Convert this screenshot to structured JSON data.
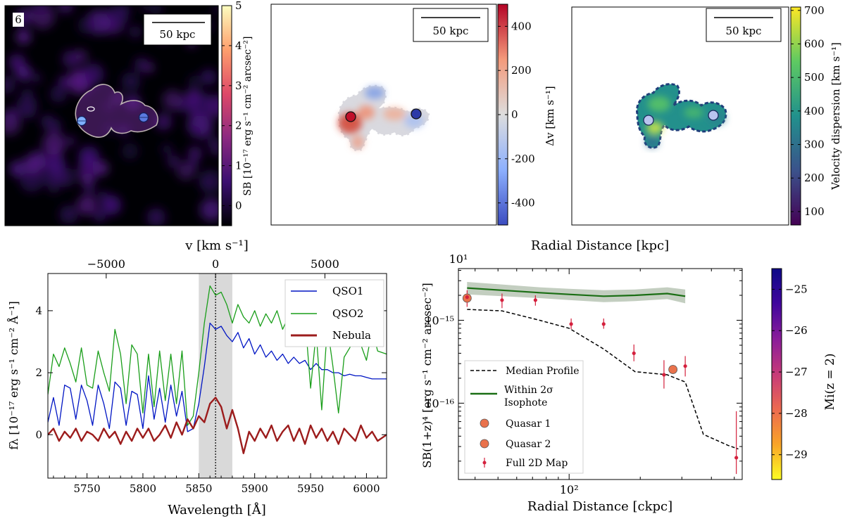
{
  "chart_data": [
    {
      "type": "heatmap",
      "panel_number": "6",
      "scalebar_label": "50 kpc",
      "colorbar_label": "SB [10⁻¹⁷ erg s⁻¹ cm⁻² arcsec⁻²]",
      "colorbar_ticks": [
        0,
        1,
        2,
        3,
        4,
        5
      ],
      "clim": [
        -0.5,
        5
      ],
      "colormap": [
        "#000004",
        "#3b0f70",
        "#8c2981",
        "#de4968",
        "#fe9f6d",
        "#fcfdbf"
      ],
      "contour_color": "#bdb2b2",
      "marker_colors": [
        "#7fb0ff",
        "#5b7be0"
      ]
    },
    {
      "type": "heatmap",
      "scalebar_label": "50 kpc",
      "colorbar_label": "Δv [km s⁻¹]",
      "colorbar_ticks": [
        400,
        200,
        0,
        -200,
        -400
      ],
      "clim": [
        -500,
        500
      ],
      "colormap": [
        "#3b4cc0",
        "#8db0fe",
        "#dddddd",
        "#f49a7b",
        "#b40426"
      ],
      "marker_colors": [
        "#c0102a",
        "#2c3aa8"
      ]
    },
    {
      "type": "heatmap",
      "scalebar_label": "50 kpc",
      "colorbar_label": "Velocity dispersion [km s⁻¹]",
      "colorbar_ticks": [
        100,
        200,
        300,
        400,
        500,
        600,
        700
      ],
      "clim": [
        60,
        710
      ],
      "colormap": [
        "#440154",
        "#3b528b",
        "#21918c",
        "#5ec962",
        "#fde725"
      ],
      "marker_colors": [
        "#b9c4ef",
        "#b9c4ef"
      ]
    },
    {
      "type": "line",
      "xlabel": "Wavelength [Å]",
      "ylabel": "fλ [10⁻¹⁷ erg s⁻¹ cm⁻² Å⁻¹]",
      "top_xlabel": "v [km s⁻¹]",
      "xlim": [
        5715,
        6018
      ],
      "ylim": [
        -1.4,
        5.2
      ],
      "xticks": [
        5750,
        5800,
        5850,
        5900,
        5950,
        6000
      ],
      "yticks": [
        0,
        2,
        4
      ],
      "top_ticks": [
        -5000,
        0,
        5000
      ],
      "top_tick_labels": [
        "−5000",
        "0",
        "5000"
      ],
      "line_center": 5865,
      "shaded_band": [
        5850,
        5880
      ],
      "series": [
        {
          "name": "QSO1",
          "color": "#0015c4",
          "x": [
            5715,
            5720,
            5725,
            5730,
            5735,
            5740,
            5745,
            5750,
            5755,
            5760,
            5765,
            5770,
            5775,
            5780,
            5785,
            5790,
            5795,
            5800,
            5805,
            5810,
            5815,
            5820,
            5825,
            5830,
            5835,
            5840,
            5845,
            5850,
            5855,
            5860,
            5865,
            5870,
            5875,
            5880,
            5885,
            5890,
            5895,
            5900,
            5905,
            5910,
            5915,
            5920,
            5925,
            5930,
            5935,
            5940,
            5945,
            5950,
            5955,
            5960,
            5965,
            5970,
            5975,
            5980,
            5985,
            5990,
            5995,
            6000,
            6005,
            6010,
            6018
          ],
          "values": [
            0.4,
            1.2,
            0.3,
            1.6,
            1.5,
            0.5,
            1.6,
            1.1,
            0.3,
            1.6,
            1.0,
            0.2,
            1.7,
            1.5,
            0.3,
            1.4,
            1.3,
            0.2,
            1.9,
            0.5,
            1.5,
            0.4,
            1.6,
            0.6,
            1.4,
            0.1,
            0.2,
            1.0,
            2.2,
            3.6,
            3.4,
            3.5,
            3.2,
            3.0,
            3.3,
            2.8,
            3.1,
            2.6,
            2.9,
            2.5,
            2.7,
            2.4,
            2.6,
            2.3,
            2.5,
            2.3,
            2.4,
            2.1,
            2.3,
            2.1,
            2.1,
            2.0,
            2.0,
            1.9,
            1.95,
            1.9,
            1.9,
            1.85,
            1.8,
            1.8,
            1.8
          ]
        },
        {
          "name": "QSO2",
          "color": "#1a9e1a",
          "x": [
            5715,
            5720,
            5725,
            5730,
            5735,
            5740,
            5745,
            5750,
            5755,
            5760,
            5765,
            5770,
            5775,
            5780,
            5785,
            5790,
            5795,
            5800,
            5805,
            5810,
            5815,
            5820,
            5825,
            5830,
            5835,
            5840,
            5845,
            5850,
            5855,
            5860,
            5865,
            5870,
            5875,
            5880,
            5885,
            5890,
            5895,
            5900,
            5905,
            5910,
            5915,
            5920,
            5925,
            5930,
            5935,
            5940,
            5945,
            5950,
            5955,
            5960,
            5965,
            5970,
            5975,
            5980,
            5985,
            5990,
            5995,
            6000,
            6005,
            6010,
            6018
          ],
          "values": [
            1.3,
            2.6,
            2.2,
            2.8,
            2.3,
            1.7,
            2.8,
            1.6,
            1.5,
            2.7,
            2.0,
            1.4,
            3.4,
            2.6,
            1.0,
            2.9,
            2.6,
            0.7,
            2.6,
            0.9,
            2.7,
            1.1,
            2.6,
            1.0,
            2.7,
            0.3,
            0.6,
            2.0,
            3.6,
            4.8,
            4.5,
            4.6,
            4.2,
            3.6,
            4.2,
            3.8,
            3.6,
            4.0,
            3.5,
            3.9,
            3.6,
            4.0,
            3.4,
            3.8,
            4.1,
            3.7,
            3.8,
            1.5,
            3.3,
            0.8,
            3.5,
            2.2,
            0.7,
            2.5,
            2.8,
            3.2,
            2.9,
            2.4,
            3.4,
            2.7,
            2.6
          ]
        },
        {
          "name": "Nebula",
          "color": "#9c1c1c",
          "x": [
            5715,
            5720,
            5725,
            5730,
            5735,
            5740,
            5745,
            5750,
            5755,
            5760,
            5765,
            5770,
            5775,
            5780,
            5785,
            5790,
            5795,
            5800,
            5805,
            5810,
            5815,
            5820,
            5825,
            5830,
            5835,
            5840,
            5845,
            5850,
            5855,
            5860,
            5865,
            5870,
            5875,
            5880,
            5885,
            5890,
            5895,
            5900,
            5905,
            5910,
            5915,
            5920,
            5925,
            5930,
            5935,
            5940,
            5945,
            5950,
            5955,
            5960,
            5965,
            5970,
            5975,
            5980,
            5985,
            5990,
            5995,
            6000,
            6005,
            6010,
            6018
          ],
          "values": [
            0.0,
            0.2,
            -0.2,
            0.1,
            -0.1,
            0.2,
            -0.2,
            0.1,
            0.0,
            -0.2,
            0.2,
            -0.1,
            0.1,
            -0.3,
            0.1,
            -0.2,
            0.2,
            -0.1,
            0.2,
            -0.2,
            0.0,
            0.3,
            -0.1,
            0.4,
            0.0,
            0.5,
            0.2,
            0.6,
            0.4,
            1.0,
            1.2,
            0.9,
            0.2,
            0.8,
            0.2,
            -0.6,
            0.1,
            -0.2,
            0.2,
            -0.1,
            0.3,
            -0.2,
            0.1,
            0.3,
            -0.2,
            0.2,
            -0.3,
            0.3,
            -0.1,
            0.2,
            -0.2,
            0.1,
            -0.3,
            0.2,
            0.0,
            -0.2,
            0.3,
            -0.1,
            0.1,
            -0.2,
            0.0
          ]
        }
      ],
      "legend": [
        "QSO1",
        "QSO2",
        "Nebula"
      ]
    },
    {
      "type": "scatter",
      "xscale": "log",
      "yscale": "log",
      "xlabel": "Radial Distance [ckpc]",
      "ylabel": "SB(1+z)⁴ [erg s⁻¹ cm⁻² arcsec⁻²]",
      "top_xlabel": "Radial Distance [kpc]",
      "top_tick_label": "10¹",
      "xlim": [
        34,
        540
      ],
      "ylim": [
        1.2e-17,
        4.2e-15
      ],
      "xtick_label": "10²",
      "ytick_labels": [
        "10⁻¹⁵",
        "10⁻¹⁶"
      ],
      "median_profile": {
        "name": "Median Profile",
        "x": [
          37,
          52,
          75,
          100,
          140,
          190,
          260,
          310,
          370,
          470,
          520
        ],
        "values": [
          1.35e-15,
          1.3e-15,
          1e-15,
          8e-16,
          4.5e-16,
          2.4e-16,
          2.2e-16,
          1.8e-16,
          4.2e-17,
          3.1e-17,
          2.8e-17
        ]
      },
      "isophote": {
        "name": "Within 2σ Isophote",
        "x": [
          37,
          52,
          75,
          100,
          140,
          190,
          260,
          310
        ],
        "values": [
          2.45e-15,
          2.3e-15,
          2.15e-15,
          2.05e-15,
          1.95e-15,
          2e-15,
          2.1e-15,
          1.95e-15
        ],
        "band_low": [
          2.05e-15,
          1.95e-15,
          1.85e-15,
          1.75e-15,
          1.65e-15,
          1.7e-15,
          1.8e-15,
          1.6e-15
        ],
        "band_high": [
          2.9e-15,
          2.7e-15,
          2.5e-15,
          2.4e-15,
          2.3e-15,
          2.35e-15,
          2.5e-15,
          2.35e-15
        ]
      },
      "full_map": {
        "name": "Full 2D Map",
        "x": [
          37,
          52,
          72,
          102,
          140,
          188,
          252,
          310,
          510
        ],
        "values": [
          1.9e-15,
          1.75e-15,
          1.75e-15,
          9e-16,
          9e-16,
          4e-16,
          2.2e-16,
          2.8e-16,
          2.2e-17
        ],
        "err_low": [
          1.45e-15,
          1.4e-15,
          1.5e-15,
          7.8e-16,
          7.9e-16,
          3.2e-16,
          1.5e-16,
          2.1e-16,
          1.4e-17
        ],
        "err_high": [
          2.3e-15,
          2.1e-15,
          2e-15,
          1.05e-15,
          1.05e-15,
          5.1e-16,
          3.3e-16,
          3.7e-16,
          8e-17
        ]
      },
      "quasars": [
        {
          "name": "Quasar 1",
          "x": 37,
          "value": 1.85e-15,
          "Mi": -28.0
        },
        {
          "name": "Quasar 2",
          "x": 275,
          "value": 2.55e-16,
          "Mi": -28.0
        }
      ],
      "legend": [
        "Median Profile",
        "Within 2σ Isophote",
        "Quasar 1",
        "Quasar 2",
        "Full 2D Map"
      ],
      "colorbar_label": "Mi(z = 2)",
      "colorbar_ticks": [
        -25,
        -26,
        -27,
        -28,
        -29
      ],
      "colorbar_tick_labels": [
        "−25",
        "−26",
        "−27",
        "−28",
        "−29"
      ],
      "clim": [
        -29.6,
        -24.5
      ],
      "colormap": [
        "#fcfd24",
        "#f9a428",
        "#ec6a50",
        "#c63a79",
        "#8a1d9a",
        "#41069d",
        "#0d0887"
      ]
    }
  ]
}
